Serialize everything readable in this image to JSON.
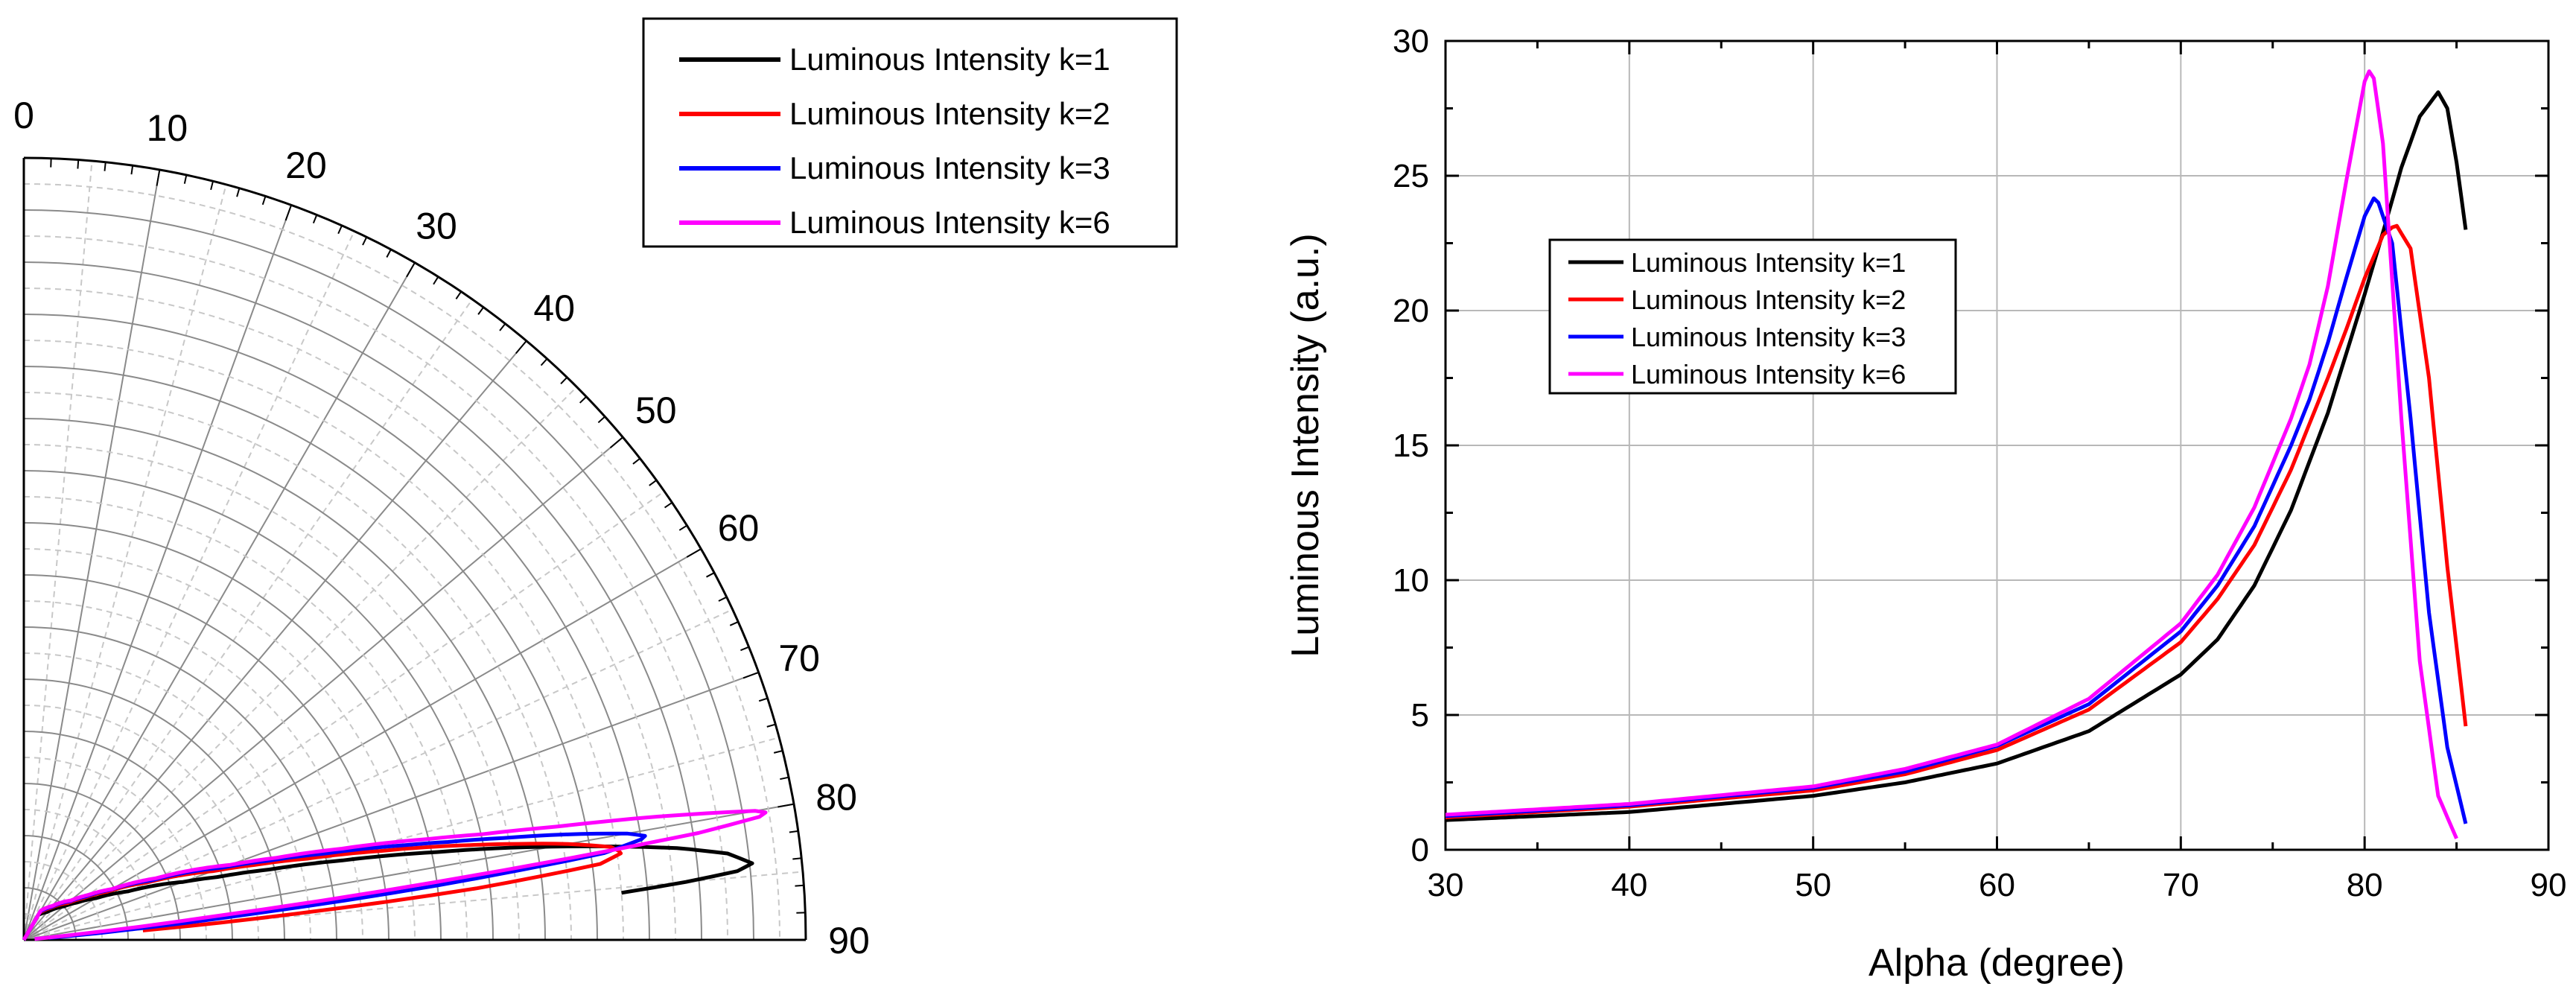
{
  "chart_data": [
    {
      "type": "polar",
      "title": "",
      "angle_unit": "degree",
      "angle_range": [
        0,
        90
      ],
      "angle_ticks": [
        "0",
        "10",
        "20",
        "30",
        "40",
        "50",
        "60",
        "70",
        "80",
        "90"
      ],
      "radial_range": [
        0,
        30
      ],
      "grid": true,
      "legend_position": "top-right",
      "series": [
        {
          "name": "Luminous Intensity  k=1",
          "color": "#000000"
        },
        {
          "name": "Luminous Intensity  k=2",
          "color": "#ff0000"
        },
        {
          "name": "Luminous Intensity  k=3",
          "color": "#0000ff"
        },
        {
          "name": "Luminous Intensity  k=6",
          "color": "#ff00ff"
        }
      ]
    },
    {
      "type": "line",
      "title": "",
      "xlabel": "Alpha (degree)",
      "ylabel": "Luminous Intensity (a.u.)",
      "xlim": [
        30,
        90
      ],
      "ylim": [
        0,
        30
      ],
      "xticks": [
        30,
        40,
        50,
        60,
        70,
        80,
        90
      ],
      "yticks": [
        0,
        5,
        10,
        15,
        20,
        25,
        30
      ],
      "grid": true,
      "legend_position": "upper-left",
      "series": [
        {
          "name": "Luminous Intensity k=1",
          "color": "#000000",
          "x": [
            30,
            40,
            50,
            55,
            60,
            65,
            70,
            72,
            74,
            76,
            78,
            80,
            81,
            82,
            83,
            84,
            84.5,
            85,
            85.7
          ],
          "y": [
            1.1,
            1.4,
            2.0,
            2.5,
            3.2,
            4.4,
            6.5,
            7.8,
            9.8,
            12.6,
            16.2,
            20.6,
            22.9,
            25.3,
            27.2,
            28.1,
            27.5,
            25.5,
            22.0
          ]
        },
        {
          "name": "Luminous Intensity k=2",
          "color": "#ff0000",
          "x": [
            30,
            40,
            50,
            55,
            60,
            65,
            70,
            72,
            74,
            76,
            78,
            79,
            80,
            81,
            81.7,
            82.5,
            83.5,
            84.5,
            85.7
          ],
          "y": [
            1.2,
            1.6,
            2.2,
            2.8,
            3.7,
            5.2,
            7.7,
            9.3,
            11.3,
            14.1,
            17.5,
            19.3,
            21.2,
            22.8,
            23.2,
            22.3,
            17.5,
            10.5,
            3.4
          ]
        },
        {
          "name": "Luminous Intensity k=3",
          "color": "#0000ff",
          "x": [
            30,
            40,
            50,
            55,
            60,
            65,
            70,
            72,
            74,
            76,
            77,
            78,
            79,
            80,
            80.6,
            81.5,
            82.5,
            83.5,
            84.5,
            85.7
          ],
          "y": [
            1.25,
            1.65,
            2.3,
            2.9,
            3.85,
            5.4,
            8.1,
            9.8,
            12.0,
            15.0,
            16.7,
            18.8,
            21.2,
            23.5,
            24.3,
            22.5,
            16.0,
            8.8,
            3.8,
            0.4
          ]
        },
        {
          "name": "Luminous Intensity k=6",
          "color": "#ff00ff",
          "x": [
            30,
            40,
            50,
            55,
            60,
            65,
            70,
            72,
            74,
            76,
            77,
            78,
            79,
            80,
            80.4,
            81,
            82,
            83,
            84,
            85.2
          ],
          "y": [
            1.3,
            1.7,
            2.35,
            3.0,
            3.9,
            5.6,
            8.4,
            10.2,
            12.7,
            16.0,
            18.0,
            20.9,
            24.8,
            28.5,
            29.1,
            26.2,
            16.0,
            7.0,
            2.0,
            0.1
          ]
        }
      ]
    }
  ]
}
